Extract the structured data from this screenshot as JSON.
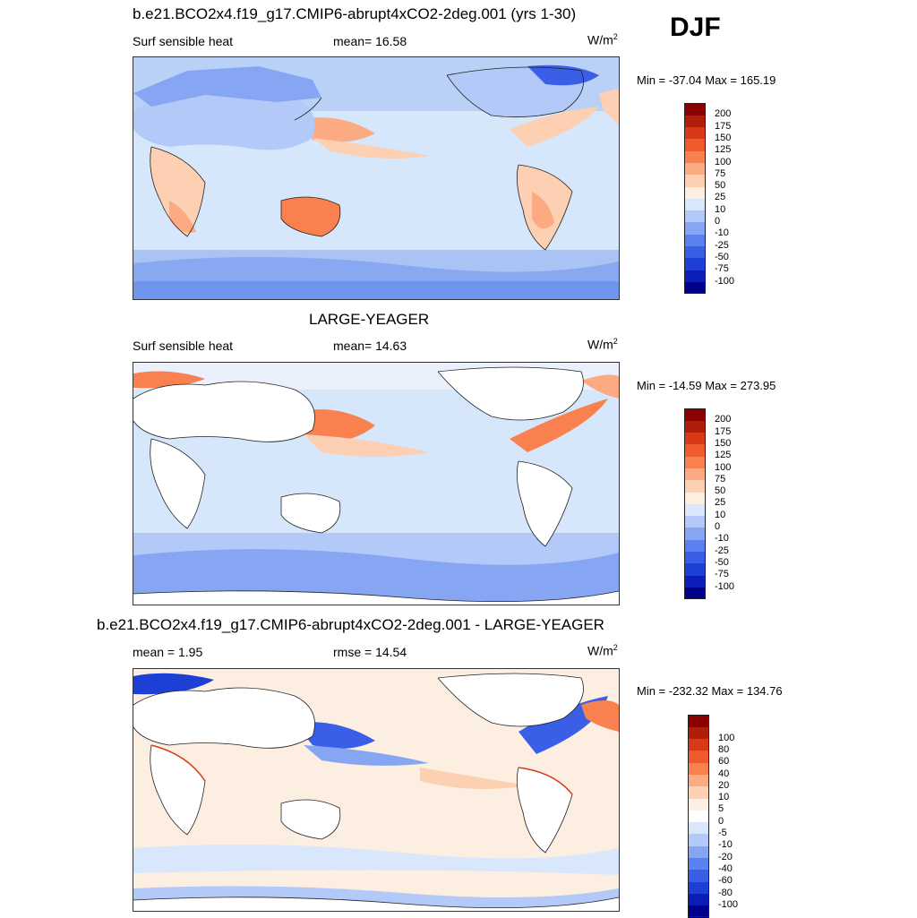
{
  "season": "DJF",
  "panels": [
    {
      "id": "model",
      "title": "b.e21.BCO2x4.f19_g17.CMIP6-abrupt4xCO2-2deg.001 (yrs 1-30)",
      "left_label": "Surf sensible heat",
      "mid_label": "mean=  16.58",
      "units": "W/m",
      "units_sup": "2",
      "minmax": "Min = -37.04 Max = 165.19",
      "colorbar": {
        "colors": [
          "#00008b",
          "#0b1fb8",
          "#1e3fd6",
          "#3a5ee6",
          "#5b80ef",
          "#86a6f4",
          "#b3caf8",
          "#d8e7fb",
          "#fdeee2",
          "#fdd0b3",
          "#fcaa82",
          "#f9814f",
          "#ef5b2c",
          "#d83a17",
          "#b01e0a",
          "#8b0000"
        ],
        "labels": [
          "-100",
          "-75",
          "-50",
          "-25",
          "-10",
          "0",
          "10",
          "25",
          "50",
          "75",
          "100",
          "125",
          "150",
          "175",
          "200"
        ]
      }
    },
    {
      "id": "obs",
      "title": "LARGE-YEAGER",
      "left_label": "Surf sensible heat",
      "mid_label": "mean=  14.63",
      "units": "W/m",
      "units_sup": "2",
      "minmax": "Min = -14.59 Max = 273.95",
      "colorbar": {
        "colors": [
          "#00008b",
          "#0b1fb8",
          "#1e3fd6",
          "#3a5ee6",
          "#5b80ef",
          "#86a6f4",
          "#b3caf8",
          "#d8e7fb",
          "#fdeee2",
          "#fdd0b3",
          "#fcaa82",
          "#f9814f",
          "#ef5b2c",
          "#d83a17",
          "#b01e0a",
          "#8b0000"
        ],
        "labels": [
          "-100",
          "-75",
          "-50",
          "-25",
          "-10",
          "0",
          "10",
          "25",
          "50",
          "75",
          "100",
          "125",
          "150",
          "175",
          "200"
        ]
      }
    },
    {
      "id": "diff",
      "title": "b.e21.BCO2x4.f19_g17.CMIP6-abrupt4xCO2-2deg.001 - LARGE-YEAGER",
      "left_label": "mean =   1.95",
      "mid_label": "rmse =  14.54",
      "units": "W/m",
      "units_sup": "2",
      "minmax": "Min = -232.32 Max = 134.76",
      "colorbar": {
        "colors": [
          "#00008b",
          "#0b1fb8",
          "#1e3fd6",
          "#3a5ee6",
          "#5b80ef",
          "#86a6f4",
          "#b3caf8",
          "#d8e7fb",
          "#ffffff",
          "#fdeee2",
          "#fdd0b3",
          "#fcaa82",
          "#f9814f",
          "#ef5b2c",
          "#d83a17",
          "#b01e0a",
          "#8b0000"
        ],
        "labels": [
          "-100",
          "-80",
          "-60",
          "-40",
          "-20",
          "-10",
          "-5",
          "0",
          "5",
          "10",
          "20",
          "40",
          "60",
          "80",
          "100"
        ]
      }
    }
  ],
  "chart_data": {
    "type": "heatmap",
    "variable": "Surf sensible heat",
    "season": "DJF",
    "units": "W/m2",
    "maps": [
      {
        "title": "b.e21.BCO2x4.f19_g17.CMIP6-abrupt4xCO2-2deg.001 (yrs 1-30)",
        "mean": 16.58,
        "min": -37.04,
        "max": 165.19,
        "levels": [
          -100,
          -75,
          -50,
          -25,
          -10,
          0,
          10,
          25,
          50,
          75,
          100,
          125,
          150,
          175,
          200
        ]
      },
      {
        "title": "LARGE-YEAGER",
        "mean": 14.63,
        "min": -14.59,
        "max": 273.95,
        "levels": [
          -100,
          -75,
          -50,
          -25,
          -10,
          0,
          10,
          25,
          50,
          75,
          100,
          125,
          150,
          175,
          200
        ]
      },
      {
        "title": "b.e21.BCO2x4.f19_g17.CMIP6-abrupt4xCO2-2deg.001 - LARGE-YEAGER",
        "mean": 1.95,
        "rmse": 14.54,
        "min": -232.32,
        "max": 134.76,
        "levels": [
          -100,
          -80,
          -60,
          -40,
          -20,
          -10,
          -5,
          0,
          5,
          10,
          20,
          40,
          60,
          80,
          100
        ]
      }
    ]
  }
}
